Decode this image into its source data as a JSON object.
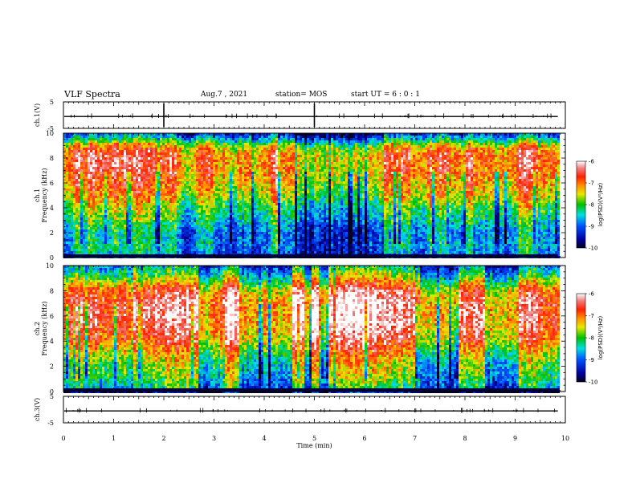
{
  "header": {
    "title": "VLF Spectra",
    "date": "Aug.7 , 2021",
    "station": "station= MOS",
    "start_ut": "start UT =  6 : 0 : 1"
  },
  "chart_data": [
    {
      "type": "line",
      "name_label": "ch.1(V)",
      "ylabel": "ch.1(V)",
      "yticks": [
        5,
        -5
      ],
      "ylim": [
        -5,
        5
      ],
      "baseline_value": -0.5,
      "x_range": [
        0,
        9.85
      ]
    },
    {
      "type": "heatmap",
      "ylabel_channel": "ch.1",
      "ylabel": "Frequency (kHz)",
      "ylim": [
        0,
        10
      ],
      "yticks": [
        "0",
        "2",
        "4",
        "6",
        "8",
        "10"
      ],
      "xlim": [
        0,
        10
      ],
      "x_data_end": 9.85,
      "profile_freq": [
        0,
        0.3,
        1,
        2,
        3,
        4,
        5,
        6,
        7,
        8,
        8.5,
        9,
        9.5,
        10
      ],
      "profile_log_psd": [
        -9.6,
        -9.0,
        -8.8,
        -8.9,
        -8.5,
        -8.1,
        -7.6,
        -7.3,
        -7.1,
        -7.0,
        -7.1,
        -7.6,
        -8.6,
        -9.4
      ],
      "colorbar": {
        "label": "log(PSD)(V²/Hz)",
        "ticks": [
          "-6",
          "-7",
          "-8",
          "-9",
          "-10"
        ],
        "range": [
          -10,
          -6
        ]
      }
    },
    {
      "type": "heatmap",
      "ylabel_channel": "ch.2",
      "ylabel": "Frequency (kHz)",
      "ylim": [
        0,
        10
      ],
      "yticks": [
        "0",
        "2",
        "4",
        "6",
        "8",
        "10"
      ],
      "xlim": [
        0,
        10
      ],
      "x_data_end": 9.85,
      "profile_freq": [
        0,
        0.3,
        1,
        2,
        3,
        4,
        5,
        6,
        7,
        8,
        8.5,
        9,
        9.5,
        10
      ],
      "profile_log_psd": [
        -9.8,
        -8.6,
        -8.2,
        -8.0,
        -7.6,
        -7.0,
        -6.7,
        -6.6,
        -6.6,
        -6.9,
        -7.4,
        -7.9,
        -8.4,
        -8.8
      ],
      "colorbar": {
        "label": "log(PSD)(V²/Hz)",
        "ticks": [
          "-6",
          "-7",
          "-8",
          "-9",
          "-10"
        ],
        "range": [
          -10,
          -6
        ]
      }
    },
    {
      "type": "line",
      "ylabel": "ch.3(V)",
      "yticks": [
        5,
        -5
      ],
      "ylim": [
        -5,
        5
      ],
      "baseline_value": -0.5,
      "x_range": [
        0,
        9.85
      ]
    }
  ],
  "xaxis": {
    "label": "Time (min)",
    "ticks": [
      "0",
      "1",
      "2",
      "3",
      "4",
      "5",
      "6",
      "7",
      "8",
      "9",
      "10"
    ],
    "xlim": [
      0,
      10
    ]
  }
}
